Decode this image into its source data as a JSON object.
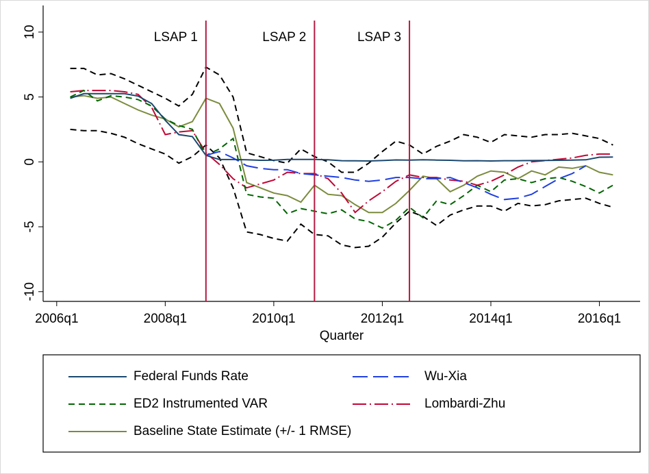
{
  "chart_data": {
    "type": "line",
    "x_label": "Quarter",
    "x": [
      "2006q2",
      "2006q3",
      "2006q4",
      "2007q1",
      "2007q2",
      "2007q3",
      "2007q4",
      "2008q1",
      "2008q2",
      "2008q3",
      "2008q4",
      "2009q1",
      "2009q2",
      "2009q3",
      "2009q4",
      "2010q1",
      "2010q2",
      "2010q3",
      "2010q4",
      "2011q1",
      "2011q2",
      "2011q3",
      "2011q4",
      "2012q1",
      "2012q2",
      "2012q3",
      "2012q4",
      "2013q1",
      "2013q2",
      "2013q3",
      "2013q4",
      "2014q1",
      "2014q2",
      "2014q3",
      "2014q4",
      "2015q1",
      "2015q2",
      "2015q3",
      "2015q4",
      "2016q1",
      "2016q2"
    ],
    "xlim": [
      "2005q4",
      "2016q4"
    ],
    "xticks": [
      "2006q1",
      "2008q1",
      "2010q1",
      "2012q1",
      "2014q1",
      "2016q1"
    ],
    "ylim": [
      -10.75,
      12.05
    ],
    "yticks": [
      -10,
      -5,
      0,
      5,
      10
    ],
    "grid": false,
    "legend": "bottom",
    "annotations": [
      {
        "text": "LSAP 1",
        "x": "2008q4",
        "color": "#b5173f"
      },
      {
        "text": "LSAP 2",
        "x": "2010q4",
        "color": "#b5173f"
      },
      {
        "text": "LSAP 3",
        "x": "2012q3",
        "color": "#b5173f"
      }
    ],
    "series": [
      {
        "name": "Federal Funds Rate",
        "color": "#1a476f",
        "dash": "solid",
        "values": [
          4.9,
          5.25,
          5.25,
          5.25,
          5.25,
          5.07,
          4.5,
          3.2,
          2.1,
          1.95,
          0.5,
          0.18,
          0.18,
          0.16,
          0.12,
          0.13,
          0.19,
          0.19,
          0.19,
          0.16,
          0.09,
          0.08,
          0.07,
          0.1,
          0.15,
          0.14,
          0.16,
          0.14,
          0.12,
          0.08,
          0.09,
          0.07,
          0.09,
          0.09,
          0.1,
          0.11,
          0.12,
          0.14,
          0.16,
          0.36,
          0.37
        ]
      },
      {
        "name": "Wu-Xia",
        "color": "#1f3fe0",
        "dash": "longdash",
        "values": [
          null,
          null,
          null,
          null,
          null,
          null,
          null,
          null,
          null,
          null,
          0.5,
          0.8,
          0.3,
          -0.3,
          -0.5,
          -0.6,
          -0.6,
          -0.9,
          -1.0,
          -1.1,
          -1.2,
          -1.4,
          -1.5,
          -1.4,
          -1.2,
          -1.2,
          -1.3,
          -1.3,
          -1.2,
          -1.6,
          -2.0,
          -2.5,
          -2.9,
          -2.8,
          -2.5,
          -1.9,
          -1.3,
          -0.9,
          -0.3,
          null,
          null
        ]
      },
      {
        "name": "ED2 Instrumented VAR",
        "color": "#006400",
        "dash": "dash",
        "values": [
          5.0,
          5.5,
          4.7,
          5.1,
          5.0,
          4.8,
          4.3,
          3.3,
          2.8,
          2.5,
          0.5,
          1.0,
          1.8,
          -2.5,
          -2.7,
          -2.8,
          -4.0,
          -3.6,
          -3.8,
          -4.0,
          -3.7,
          -4.4,
          -4.6,
          -5.1,
          -4.5,
          -3.5,
          -4.3,
          -3.0,
          -3.3,
          -2.6,
          -1.8,
          -2.3,
          -1.4,
          -1.3,
          -1.6,
          -1.3,
          -1.2,
          -1.5,
          -1.9,
          -2.4,
          -1.8
        ]
      },
      {
        "name": "Lombardi-Zhu",
        "color": "#c10534",
        "dash": "longdash_dot",
        "values": [
          5.4,
          5.5,
          5.5,
          5.5,
          5.4,
          5.2,
          4.2,
          2.1,
          2.3,
          2.4,
          0.7,
          -0.2,
          -1.3,
          -2.0,
          -1.7,
          -1.4,
          -0.8,
          -0.9,
          -0.9,
          -1.3,
          -2.4,
          -3.9,
          -3.0,
          -2.3,
          -1.5,
          -1.0,
          -1.2,
          -1.2,
          -1.4,
          -1.5,
          -1.8,
          -1.5,
          -1.0,
          -0.4,
          0.0,
          0.1,
          0.2,
          0.3,
          0.5,
          0.6,
          0.6
        ]
      },
      {
        "name": "Baseline State Estimate (+/- 1 RMSE)",
        "color": "#7a8b3c",
        "dash": "solid",
        "values": [
          5.0,
          5.1,
          4.9,
          5.0,
          4.5,
          4.0,
          3.6,
          3.3,
          2.7,
          3.1,
          4.9,
          4.5,
          2.6,
          -1.6,
          -2.0,
          -2.4,
          -2.6,
          -3.1,
          -1.8,
          -2.5,
          -2.6,
          -3.3,
          -3.9,
          -3.9,
          -3.2,
          -2.2,
          -1.1,
          -1.3,
          -2.3,
          -1.8,
          -1.1,
          -0.7,
          -0.8,
          -1.3,
          -0.7,
          -1.0,
          -0.4,
          -0.5,
          -0.3,
          -0.8,
          -1.0
        ]
      },
      {
        "color": "#000000",
        "dash": "dash",
        "values": [
          7.2,
          7.2,
          6.7,
          6.8,
          6.4,
          5.9,
          5.4,
          4.9,
          4.3,
          5.2,
          7.3,
          6.7,
          5.0,
          0.7,
          0.4,
          0.1,
          -0.1,
          1.0,
          0.4,
          0.0,
          -0.8,
          -0.8,
          -0.1,
          0.8,
          1.6,
          1.3,
          0.6,
          1.2,
          1.6,
          2.1,
          1.9,
          1.5,
          2.1,
          2.0,
          1.9,
          2.1,
          2.1,
          2.2,
          2.0,
          1.8,
          1.3
        ]
      },
      {
        "color": "#000000",
        "dash": "dash",
        "values": [
          2.5,
          2.4,
          2.4,
          2.2,
          1.9,
          1.4,
          1.0,
          0.6,
          -0.1,
          0.4,
          1.3,
          0.3,
          -2.0,
          -5.4,
          -5.6,
          -5.9,
          -6.1,
          -4.8,
          -5.6,
          -5.7,
          -6.4,
          -6.6,
          -6.5,
          -5.8,
          -4.7,
          -3.8,
          -4.2,
          -4.9,
          -4.1,
          -3.7,
          -3.4,
          -3.4,
          -3.8,
          -3.2,
          -3.4,
          -3.3,
          -3.0,
          -2.9,
          -2.8,
          -3.2,
          -3.5
        ]
      }
    ]
  }
}
